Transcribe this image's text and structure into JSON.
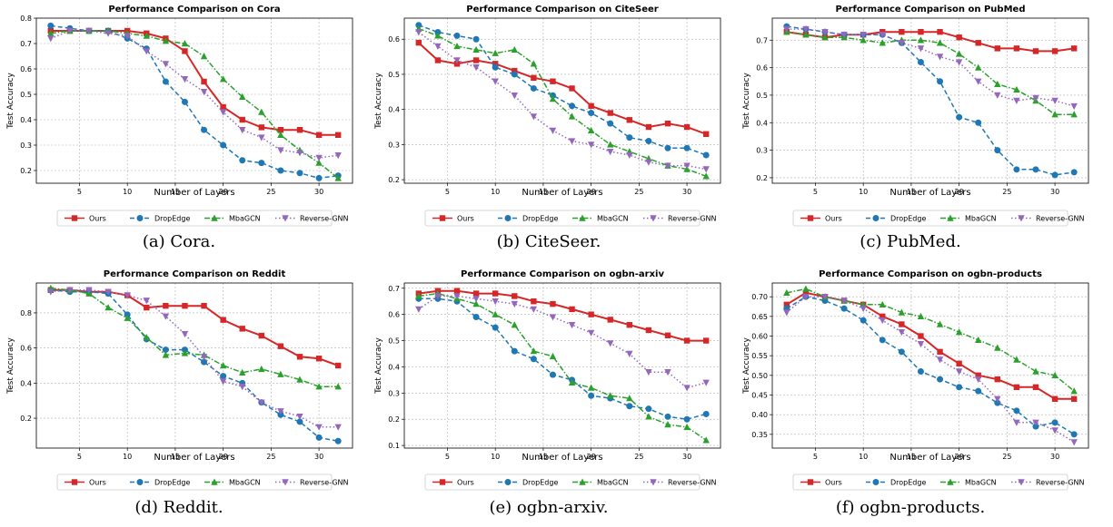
{
  "legend_labels": [
    "Ours",
    "DropEdge",
    "MbaGCN",
    "Reverse-GNN"
  ],
  "series_styles": [
    {
      "color": "#d62728",
      "marker": "square",
      "dash": "solid"
    },
    {
      "color": "#1f77b4",
      "marker": "circle",
      "dash": "dashed"
    },
    {
      "color": "#2ca02c",
      "marker": "triangle-up",
      "dash": "dashdot"
    },
    {
      "color": "#9467bd",
      "marker": "triangle-down",
      "dash": "dotted"
    }
  ],
  "chart_data": [
    {
      "type": "line",
      "title": "Performance Comparison on Cora",
      "xlabel": "Number of Layers",
      "ylabel": "Test Accuracy",
      "caption": "(a) Cora.",
      "x": [
        2,
        4,
        6,
        8,
        10,
        12,
        14,
        16,
        18,
        20,
        22,
        24,
        26,
        28,
        30,
        32
      ],
      "xlim": [
        0.5,
        33.5
      ],
      "ylim": [
        0.15,
        0.8
      ],
      "xticks": [
        5,
        10,
        15,
        20,
        25,
        30
      ],
      "yticks": [
        0.2,
        0.3,
        0.4,
        0.5,
        0.6,
        0.7,
        0.8
      ],
      "grid": true,
      "legend": "bottom",
      "series": [
        {
          "name": "Ours",
          "values": [
            0.75,
            0.75,
            0.75,
            0.75,
            0.75,
            0.74,
            0.72,
            0.67,
            0.55,
            0.45,
            0.4,
            0.37,
            0.36,
            0.36,
            0.34,
            0.34
          ]
        },
        {
          "name": "DropEdge",
          "values": [
            0.77,
            0.76,
            0.75,
            0.75,
            0.72,
            0.68,
            0.55,
            0.47,
            0.36,
            0.3,
            0.24,
            0.23,
            0.2,
            0.19,
            0.17,
            0.18
          ]
        },
        {
          "name": "MbaGCN",
          "values": [
            0.74,
            0.75,
            0.75,
            0.75,
            0.74,
            0.73,
            0.71,
            0.7,
            0.65,
            0.56,
            0.49,
            0.43,
            0.34,
            0.28,
            0.23,
            0.17
          ]
        },
        {
          "name": "Reverse-GNN",
          "values": [
            0.72,
            0.75,
            0.75,
            0.74,
            0.73,
            0.67,
            0.62,
            0.56,
            0.51,
            0.43,
            0.36,
            0.33,
            0.28,
            0.27,
            0.25,
            0.26
          ]
        }
      ]
    },
    {
      "type": "line",
      "title": "Performance Comparison on CiteSeer",
      "xlabel": "Number of Layers",
      "ylabel": "Test Accuracy",
      "caption": "(b) CiteSeer.",
      "x": [
        2,
        4,
        6,
        8,
        10,
        12,
        14,
        16,
        18,
        20,
        22,
        24,
        26,
        28,
        30,
        32
      ],
      "xlim": [
        0.5,
        33.5
      ],
      "ylim": [
        0.19,
        0.66
      ],
      "xticks": [
        5,
        10,
        15,
        20,
        25,
        30
      ],
      "yticks": [
        0.2,
        0.3,
        0.4,
        0.5,
        0.6
      ],
      "grid": true,
      "legend": "bottom",
      "series": [
        {
          "name": "Ours",
          "values": [
            0.59,
            0.54,
            0.53,
            0.54,
            0.53,
            0.51,
            0.49,
            0.48,
            0.46,
            0.41,
            0.39,
            0.37,
            0.35,
            0.36,
            0.35,
            0.33
          ]
        },
        {
          "name": "DropEdge",
          "values": [
            0.64,
            0.62,
            0.61,
            0.6,
            0.52,
            0.5,
            0.46,
            0.44,
            0.41,
            0.39,
            0.36,
            0.32,
            0.31,
            0.29,
            0.29,
            0.27
          ]
        },
        {
          "name": "MbaGCN",
          "values": [
            0.63,
            0.61,
            0.58,
            0.57,
            0.56,
            0.57,
            0.53,
            0.43,
            0.38,
            0.34,
            0.3,
            0.28,
            0.26,
            0.24,
            0.23,
            0.21
          ]
        },
        {
          "name": "Reverse-GNN",
          "values": [
            0.62,
            0.58,
            0.54,
            0.52,
            0.48,
            0.44,
            0.38,
            0.34,
            0.31,
            0.3,
            0.28,
            0.27,
            0.25,
            0.24,
            0.24,
            0.23
          ]
        }
      ]
    },
    {
      "type": "line",
      "title": "Performance Comparison on PubMed",
      "xlabel": "Number of Layers",
      "ylabel": "Test Accuracy",
      "caption": "(c) PubMed.",
      "x": [
        2,
        4,
        6,
        8,
        10,
        12,
        14,
        16,
        18,
        20,
        22,
        24,
        26,
        28,
        30,
        32
      ],
      "xlim": [
        0.5,
        33.5
      ],
      "ylim": [
        0.18,
        0.78
      ],
      "xticks": [
        5,
        10,
        15,
        20,
        25,
        30
      ],
      "yticks": [
        0.2,
        0.3,
        0.4,
        0.5,
        0.6,
        0.7
      ],
      "grid": true,
      "legend": "bottom",
      "series": [
        {
          "name": "Ours",
          "values": [
            0.73,
            0.72,
            0.71,
            0.72,
            0.72,
            0.73,
            0.73,
            0.73,
            0.73,
            0.71,
            0.69,
            0.67,
            0.67,
            0.66,
            0.66,
            0.67
          ]
        },
        {
          "name": "DropEdge",
          "values": [
            0.75,
            0.74,
            0.73,
            0.72,
            0.72,
            0.72,
            0.69,
            0.62,
            0.55,
            0.42,
            0.4,
            0.3,
            0.23,
            0.23,
            0.21,
            0.22
          ]
        },
        {
          "name": "MbaGCN",
          "values": [
            0.73,
            0.72,
            0.71,
            0.71,
            0.7,
            0.69,
            0.7,
            0.7,
            0.69,
            0.65,
            0.6,
            0.54,
            0.52,
            0.48,
            0.43,
            0.43
          ]
        },
        {
          "name": "Reverse-GNN",
          "values": [
            0.74,
            0.74,
            0.73,
            0.72,
            0.72,
            0.72,
            0.69,
            0.67,
            0.64,
            0.62,
            0.55,
            0.5,
            0.48,
            0.49,
            0.48,
            0.46
          ]
        }
      ]
    },
    {
      "type": "line",
      "title": "Performance Comparison on Reddit",
      "xlabel": "Number of Layers",
      "ylabel": "Test Accuracy",
      "caption": "(d) Reddit.",
      "x": [
        2,
        4,
        6,
        8,
        10,
        12,
        14,
        16,
        18,
        20,
        22,
        24,
        26,
        28,
        30,
        32
      ],
      "xlim": [
        0.5,
        33.5
      ],
      "ylim": [
        0.03,
        0.97
      ],
      "xticks": [
        5,
        10,
        15,
        20,
        25,
        30
      ],
      "yticks": [
        0.2,
        0.4,
        0.6,
        0.8
      ],
      "grid": true,
      "legend": "bottom",
      "series": [
        {
          "name": "Ours",
          "values": [
            0.93,
            0.93,
            0.92,
            0.92,
            0.9,
            0.83,
            0.84,
            0.84,
            0.84,
            0.76,
            0.71,
            0.67,
            0.61,
            0.55,
            0.54,
            0.5
          ]
        },
        {
          "name": "DropEdge",
          "values": [
            0.93,
            0.92,
            0.92,
            0.91,
            0.79,
            0.65,
            0.59,
            0.59,
            0.52,
            0.44,
            0.4,
            0.29,
            0.22,
            0.18,
            0.09,
            0.07
          ]
        },
        {
          "name": "MbaGCN",
          "values": [
            0.94,
            0.93,
            0.91,
            0.83,
            0.77,
            0.66,
            0.56,
            0.57,
            0.56,
            0.5,
            0.46,
            0.48,
            0.45,
            0.42,
            0.38,
            0.38
          ]
        },
        {
          "name": "Reverse-GNN",
          "values": [
            0.92,
            0.93,
            0.93,
            0.92,
            0.9,
            0.87,
            0.78,
            0.68,
            0.55,
            0.41,
            0.38,
            0.29,
            0.24,
            0.21,
            0.15,
            0.15
          ]
        }
      ]
    },
    {
      "type": "line",
      "title": "Performance Comparison on ogbn-arxiv",
      "xlabel": "Number of Layers",
      "ylabel": "Test Accuracy",
      "caption": "(e) ogbn-arxiv.",
      "x": [
        2,
        4,
        6,
        8,
        10,
        12,
        14,
        16,
        18,
        20,
        22,
        24,
        26,
        28,
        30,
        32
      ],
      "xlim": [
        0.5,
        33.5
      ],
      "ylim": [
        0.09,
        0.72
      ],
      "xticks": [
        5,
        10,
        15,
        20,
        25,
        30
      ],
      "yticks": [
        0.1,
        0.2,
        0.3,
        0.4,
        0.5,
        0.6,
        0.7
      ],
      "grid": true,
      "legend": "bottom",
      "series": [
        {
          "name": "Ours",
          "values": [
            0.68,
            0.69,
            0.69,
            0.68,
            0.68,
            0.67,
            0.65,
            0.64,
            0.62,
            0.6,
            0.58,
            0.56,
            0.54,
            0.52,
            0.5,
            0.5
          ]
        },
        {
          "name": "DropEdge",
          "values": [
            0.66,
            0.66,
            0.65,
            0.59,
            0.55,
            0.46,
            0.43,
            0.37,
            0.35,
            0.29,
            0.28,
            0.25,
            0.24,
            0.21,
            0.2,
            0.22
          ]
        },
        {
          "name": "MbaGCN",
          "values": [
            0.67,
            0.68,
            0.66,
            0.64,
            0.6,
            0.56,
            0.46,
            0.44,
            0.34,
            0.32,
            0.29,
            0.28,
            0.21,
            0.18,
            0.17,
            0.12
          ]
        },
        {
          "name": "Reverse-GNN",
          "values": [
            0.62,
            0.67,
            0.67,
            0.66,
            0.65,
            0.64,
            0.62,
            0.59,
            0.56,
            0.53,
            0.49,
            0.45,
            0.38,
            0.38,
            0.32,
            0.34
          ]
        }
      ]
    },
    {
      "type": "line",
      "title": "Performance Comparison on ogbn-products",
      "xlabel": "Number of Layers",
      "ylabel": "Test Accuracy",
      "caption": "(f) ogbn-products.",
      "x": [
        2,
        4,
        6,
        8,
        10,
        12,
        14,
        16,
        18,
        20,
        22,
        24,
        26,
        28,
        30,
        32
      ],
      "xlim": [
        0.5,
        33.5
      ],
      "ylim": [
        0.315,
        0.735
      ],
      "xticks": [
        5,
        10,
        15,
        20,
        25,
        30
      ],
      "yticks": [
        0.35,
        0.4,
        0.45,
        0.5,
        0.55,
        0.6,
        0.65,
        0.7
      ],
      "grid": true,
      "legend": "bottom",
      "series": [
        {
          "name": "Ours",
          "values": [
            0.68,
            0.71,
            0.7,
            0.69,
            0.68,
            0.65,
            0.63,
            0.6,
            0.56,
            0.53,
            0.5,
            0.49,
            0.47,
            0.47,
            0.44,
            0.44
          ]
        },
        {
          "name": "DropEdge",
          "values": [
            0.67,
            0.7,
            0.69,
            0.67,
            0.64,
            0.59,
            0.56,
            0.51,
            0.49,
            0.47,
            0.46,
            0.43,
            0.41,
            0.37,
            0.38,
            0.35
          ]
        },
        {
          "name": "MbaGCN",
          "values": [
            0.71,
            0.72,
            0.7,
            0.69,
            0.68,
            0.68,
            0.66,
            0.65,
            0.63,
            0.61,
            0.59,
            0.57,
            0.54,
            0.51,
            0.5,
            0.46
          ]
        },
        {
          "name": "Reverse-GNN",
          "values": [
            0.66,
            0.7,
            0.7,
            0.69,
            0.67,
            0.64,
            0.61,
            0.58,
            0.54,
            0.51,
            0.49,
            0.44,
            0.38,
            0.38,
            0.36,
            0.33
          ]
        }
      ]
    }
  ]
}
